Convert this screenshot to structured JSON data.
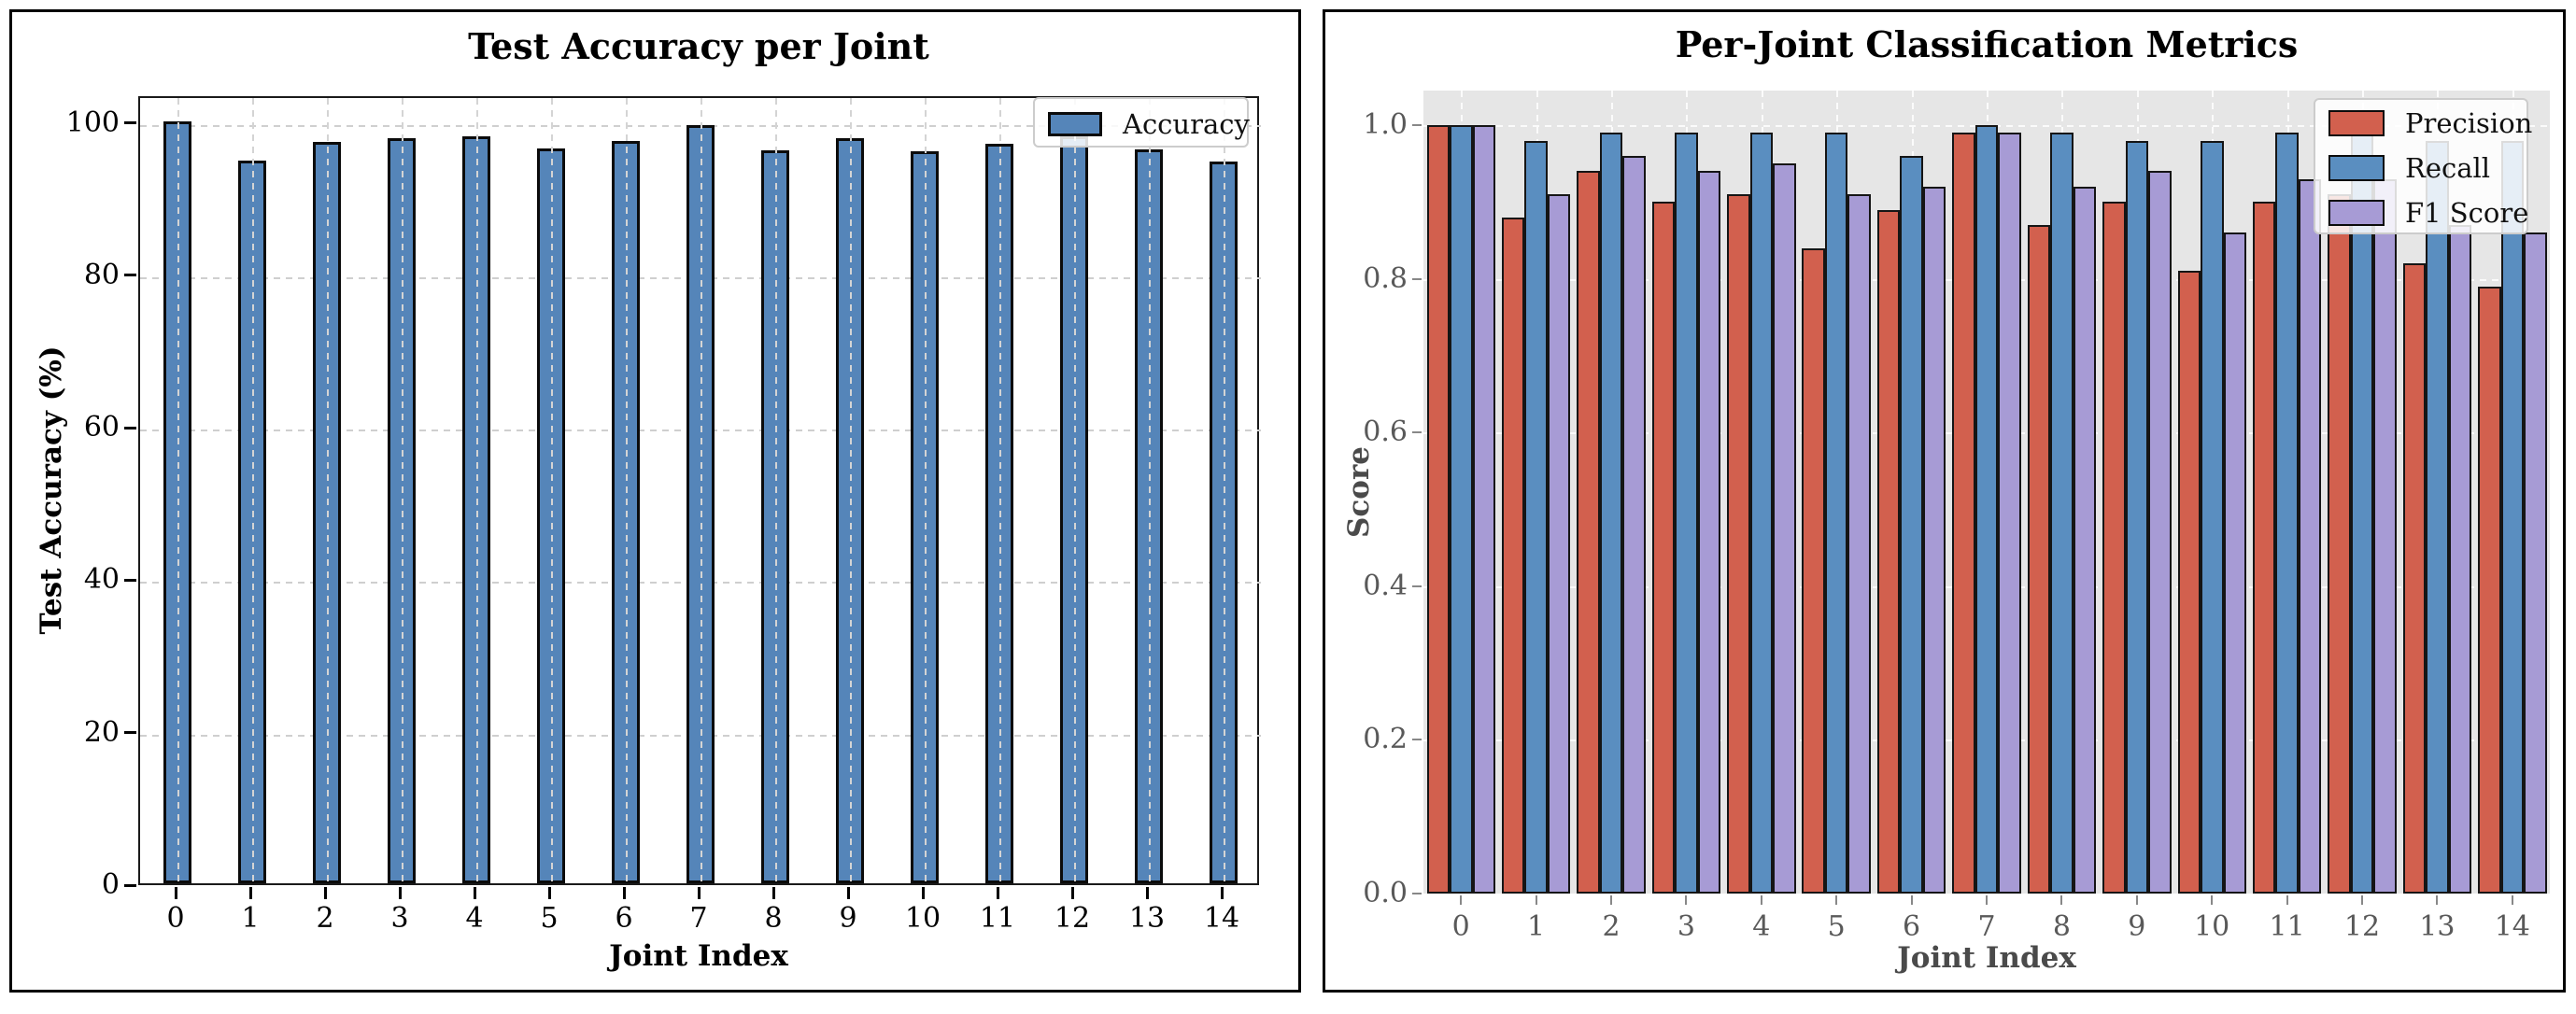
{
  "page": {
    "background": "#ffffff"
  },
  "chart_data": [
    {
      "type": "bar",
      "title": "Test Accuracy per Joint",
      "xlabel": "Joint Index",
      "ylabel": "Test Accuracy (%)",
      "categories": [
        "0",
        "1",
        "2",
        "3",
        "4",
        "5",
        "6",
        "7",
        "8",
        "9",
        "10",
        "11",
        "12",
        "13",
        "14"
      ],
      "series": [
        {
          "name": "Accuracy",
          "color": "#5585B9",
          "values": [
            100.0,
            94.8,
            97.2,
            97.8,
            98.0,
            96.4,
            97.4,
            99.5,
            96.2,
            97.8,
            96.0,
            97.0,
            98.0,
            96.3,
            94.7
          ]
        }
      ],
      "ylim": [
        0,
        103.5
      ],
      "yticks": [
        0,
        20,
        40,
        60,
        80,
        100
      ],
      "ytick_labels": [
        "0",
        "20",
        "40",
        "60",
        "80",
        "100"
      ],
      "grid": true,
      "legend": {
        "position": "top-right",
        "entries": [
          "Accuracy"
        ]
      },
      "style": {
        "background": "#ffffff",
        "grid_color": "#cfcfcf",
        "text_color": "#000000"
      }
    },
    {
      "type": "bar",
      "title": "Per-Joint Classification Metrics",
      "xlabel": "Joint Index",
      "ylabel": "Score",
      "categories": [
        "0",
        "1",
        "2",
        "3",
        "4",
        "5",
        "6",
        "7",
        "8",
        "9",
        "10",
        "11",
        "12",
        "13",
        "14"
      ],
      "series": [
        {
          "name": "Precision",
          "color": "#D2604E",
          "values": [
            1.0,
            0.88,
            0.94,
            0.9,
            0.91,
            0.84,
            0.89,
            0.99,
            0.87,
            0.9,
            0.81,
            0.9,
            0.91,
            0.82,
            0.79
          ]
        },
        {
          "name": "Recall",
          "color": "#5A8EC0",
          "values": [
            1.0,
            0.98,
            0.99,
            0.99,
            0.99,
            0.99,
            0.96,
            1.0,
            0.99,
            0.98,
            0.98,
            0.99,
            0.99,
            0.98,
            0.98
          ]
        },
        {
          "name": "F1 Score",
          "color": "#A79BD5",
          "values": [
            1.0,
            0.91,
            0.96,
            0.94,
            0.95,
            0.91,
            0.92,
            0.99,
            0.92,
            0.94,
            0.86,
            0.93,
            0.93,
            0.87,
            0.86
          ]
        }
      ],
      "ylim": [
        0,
        1.045
      ],
      "yticks": [
        0.0,
        0.2,
        0.4,
        0.6,
        0.8,
        1.0
      ],
      "ytick_labels": [
        "0.0",
        "0.2",
        "0.4",
        "0.6",
        "0.8",
        "1.0"
      ],
      "grid": true,
      "legend": {
        "position": "top-right",
        "entries": [
          "Precision",
          "Recall",
          "F1 Score"
        ]
      },
      "style": {
        "background": "#e6e6e6",
        "grid_color": "#fbfbfb",
        "text_color": "#595959"
      }
    }
  ]
}
